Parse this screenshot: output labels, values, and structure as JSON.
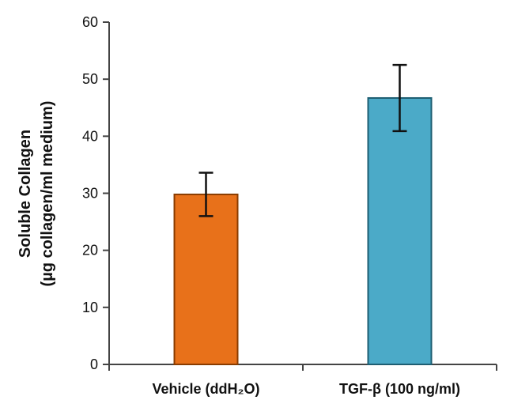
{
  "chart_data": {
    "type": "bar",
    "categories": [
      "Vehicle (ddH₂O)",
      "TGF-β (100 ng/ml)"
    ],
    "values": [
      29.8,
      46.7
    ],
    "errors": [
      3.8,
      5.8
    ],
    "ylabel": "Soluble Collagen",
    "ylabel_units": "(µg collagen/ml medium)",
    "ylim": [
      0,
      60
    ],
    "yticks": [
      0,
      10,
      20,
      30,
      40,
      50,
      60
    ],
    "grid": false,
    "bar_colors": [
      "#E8711A",
      "#4BAAC8"
    ],
    "bar_edge_colors": [
      "#8A3C00",
      "#1E5E72"
    ]
  }
}
